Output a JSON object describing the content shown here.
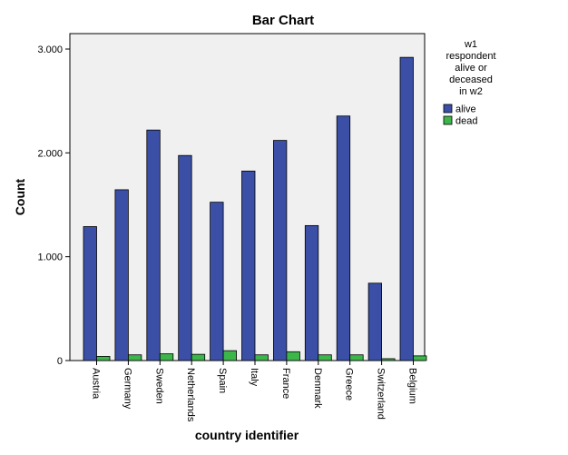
{
  "chart_data": {
    "type": "bar",
    "title": "Bar Chart",
    "xlabel": "country identifier",
    "ylabel": "Count",
    "categories": [
      "Austria",
      "Germany",
      "Sweden",
      "Netherlands",
      "Spain",
      "Italy",
      "France",
      "Denmark",
      "Greece",
      "Switzerland",
      "Belgium"
    ],
    "series": [
      {
        "name": "alive",
        "color": "#3a4fa5",
        "values": [
          1290,
          1645,
          2220,
          1975,
          1525,
          1825,
          2120,
          1300,
          2355,
          745,
          2920
        ]
      },
      {
        "name": "dead",
        "color": "#3cb54a",
        "values": [
          40,
          55,
          65,
          60,
          95,
          55,
          85,
          55,
          55,
          18,
          45
        ]
      }
    ],
    "ylim": [
      0,
      3000
    ],
    "yticks": [
      {
        "value": 0,
        "label": "0"
      },
      {
        "value": 1000,
        "label": "1.000"
      },
      {
        "value": 2000,
        "label": "2.000"
      },
      {
        "value": 3000,
        "label": "3.000"
      }
    ],
    "legend": {
      "title_lines": [
        "w1",
        "respondent",
        "alive or",
        "deceased",
        "in w2"
      ],
      "placement": "right"
    },
    "grid": false,
    "plot_background": "#f0f0f0"
  }
}
